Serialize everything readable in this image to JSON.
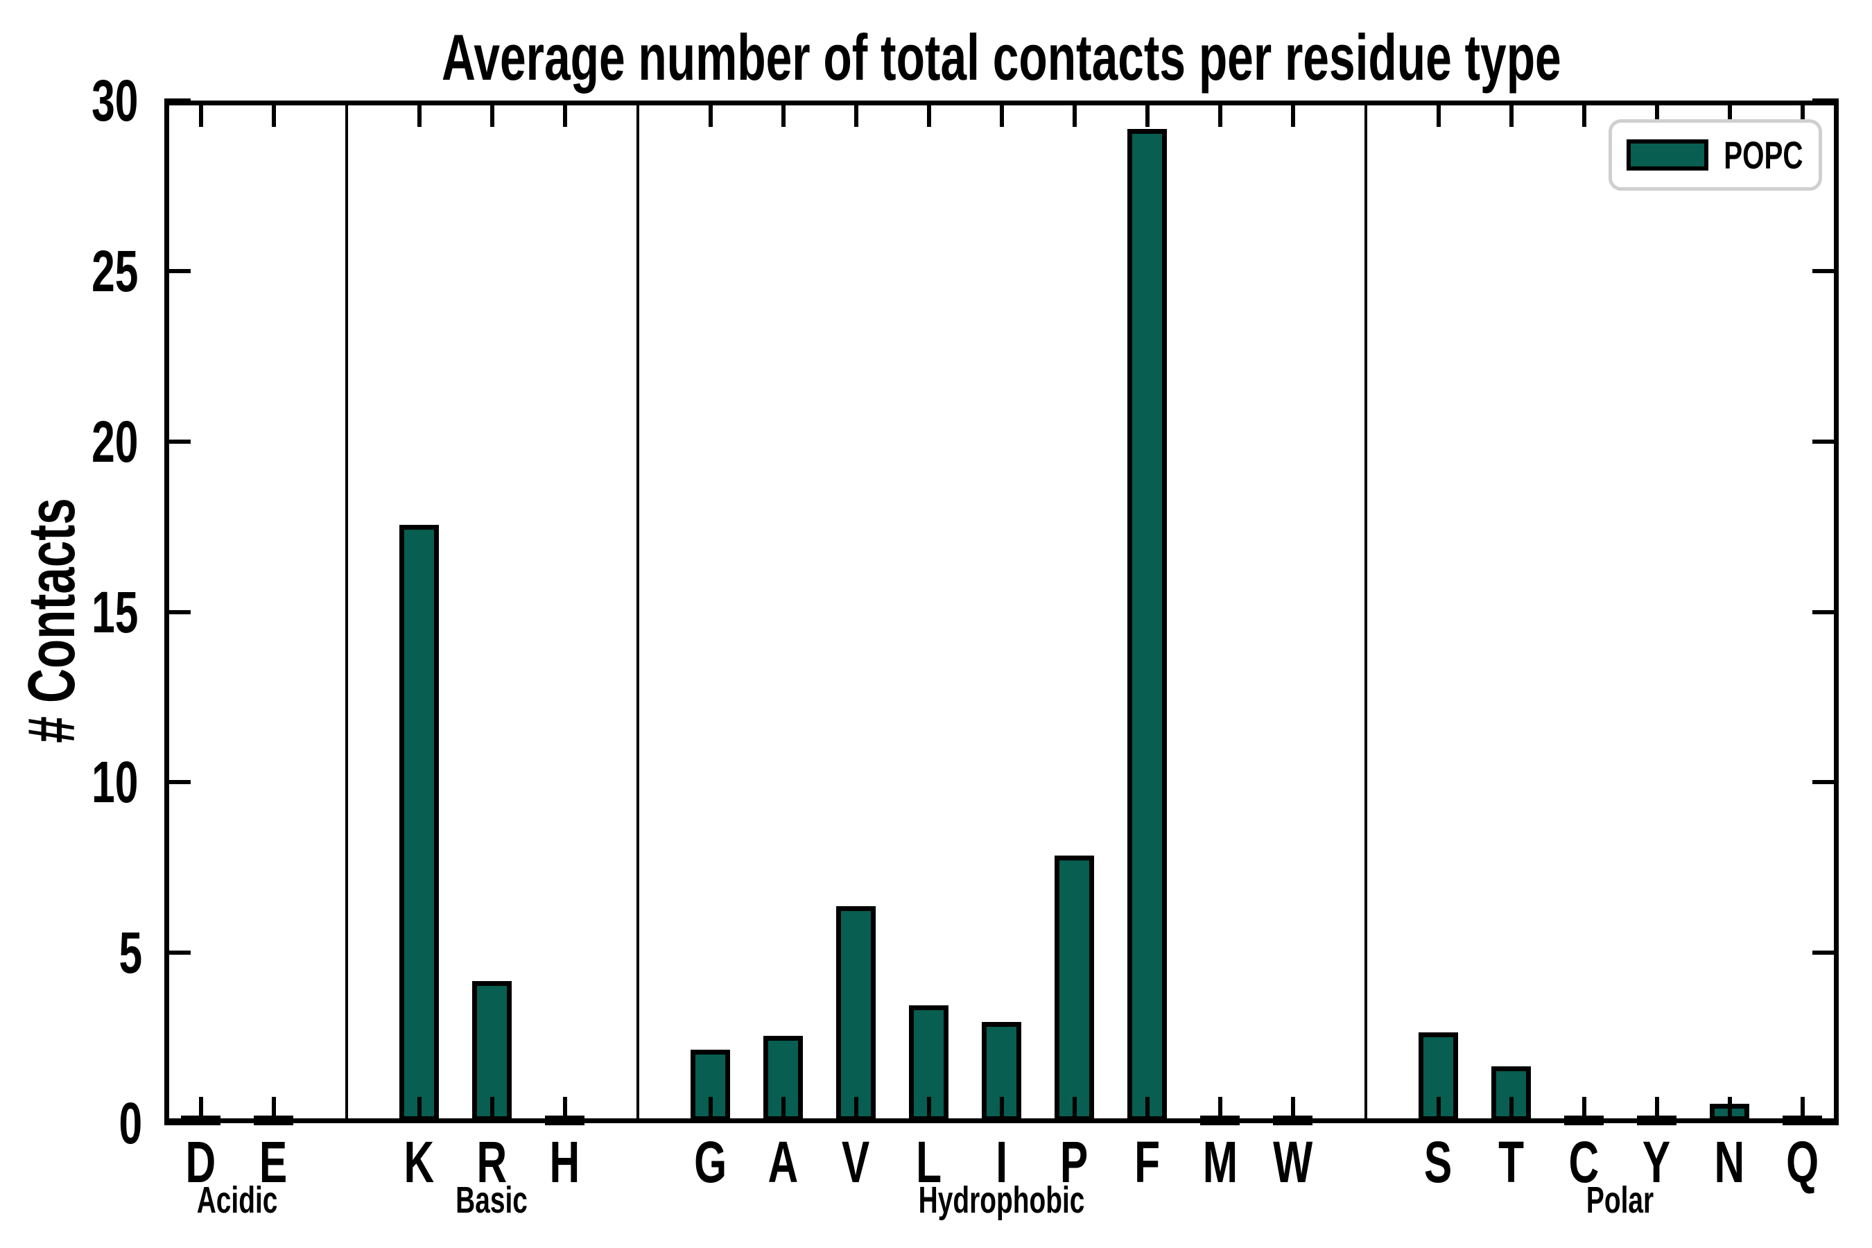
{
  "chart_data": {
    "type": "bar",
    "title": "Average number of total contacts per residue type",
    "xlabel": "",
    "ylabel": "# Contacts",
    "ylim": [
      0,
      30
    ],
    "yticks": [
      0,
      5,
      10,
      15,
      20,
      25,
      30
    ],
    "grid": false,
    "legend": {
      "label": "POPC",
      "position": "upper right"
    },
    "bar_color": "#075e51",
    "bar_edge_color": "#000000",
    "groups": [
      {
        "label": "Acidic",
        "categories": [
          "D",
          "E"
        ],
        "values": [
          0.05,
          0.05
        ]
      },
      {
        "label": "Basic",
        "categories": [
          "K",
          "R",
          "H"
        ],
        "values": [
          17.5,
          4.1,
          0.05
        ]
      },
      {
        "label": "Hydrophobic",
        "categories": [
          "G",
          "A",
          "V",
          "L",
          "I",
          "P",
          "F",
          "M",
          "W"
        ],
        "values": [
          2.1,
          2.5,
          6.3,
          3.4,
          2.9,
          7.8,
          29.1,
          0.05,
          0.05
        ]
      },
      {
        "label": "Polar",
        "categories": [
          "S",
          "T",
          "C",
          "Y",
          "N",
          "Q"
        ],
        "values": [
          2.6,
          1.6,
          0.05,
          0.05,
          0.5,
          0.05
        ]
      }
    ]
  }
}
